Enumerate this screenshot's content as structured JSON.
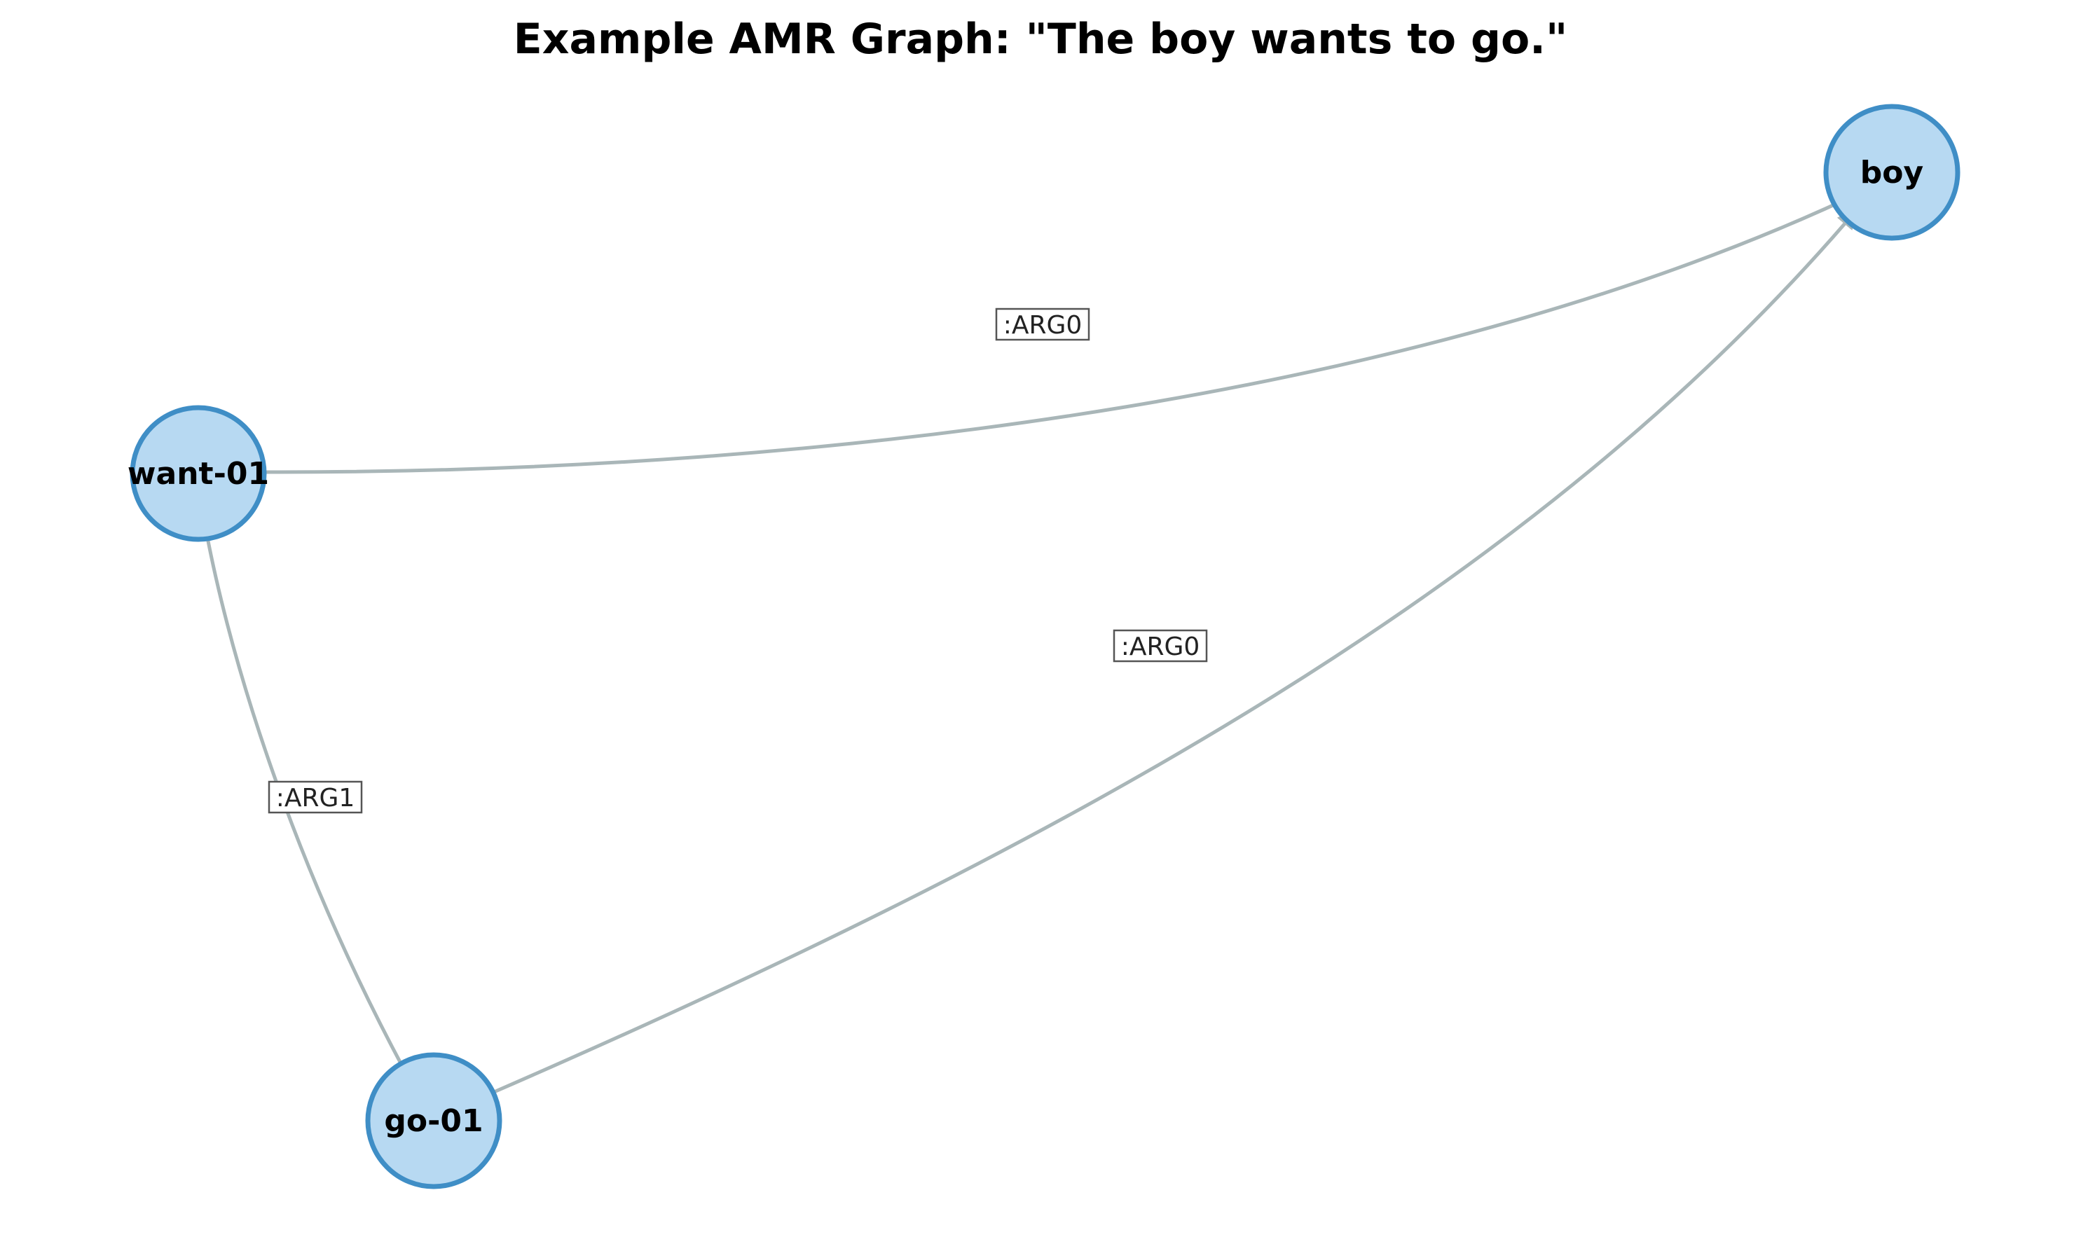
{
  "diagram": {
    "title": "Example AMR Graph: \"The boy wants to go.\"",
    "colors": {
      "node_fill": "#b7d9f2",
      "node_stroke": "#3f8ec6",
      "edge": "#a9b6b8",
      "label_border": "#555555"
    },
    "nodes": [
      {
        "id": "want",
        "label": "want-01"
      },
      {
        "id": "boy",
        "label": "boy"
      },
      {
        "id": "go",
        "label": "go-01"
      }
    ],
    "edges": [
      {
        "id": "want-boy",
        "from": "want",
        "to": "boy",
        "label": ":ARG0"
      },
      {
        "id": "want-go",
        "from": "want",
        "to": "go",
        "label": ":ARG1"
      },
      {
        "id": "go-boy",
        "from": "go",
        "to": "boy",
        "label": ":ARG0"
      }
    ]
  }
}
